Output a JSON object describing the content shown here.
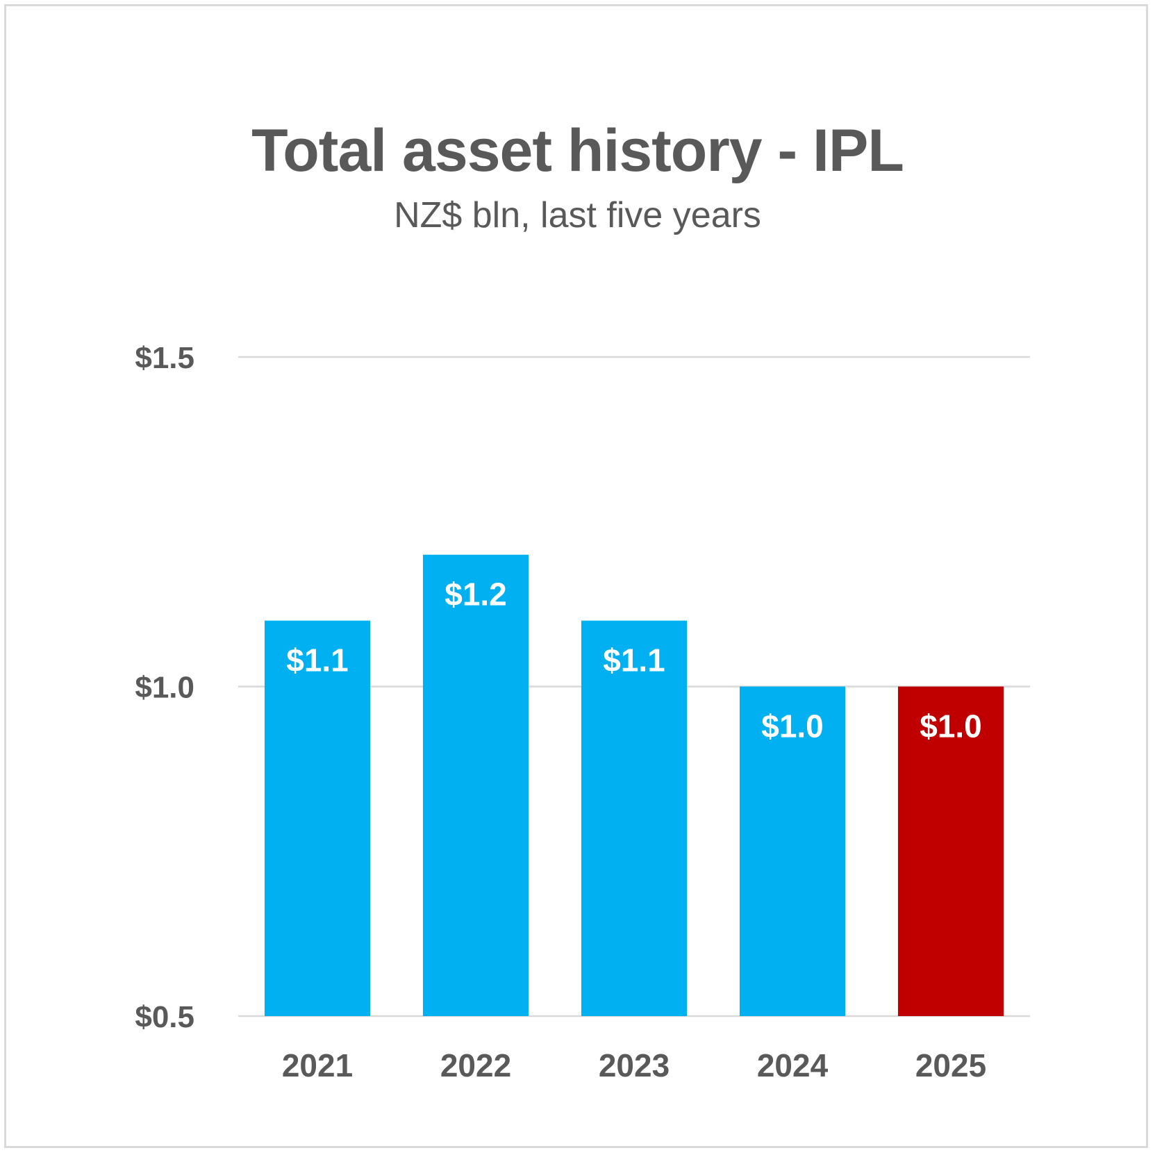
{
  "chart_data": {
    "type": "bar",
    "title": "Total asset history - IPL",
    "subtitle": "NZ$ bln, last five years",
    "categories": [
      "2021",
      "2022",
      "2023",
      "2024",
      "2025"
    ],
    "values": [
      1.1,
      1.2,
      1.1,
      1.0,
      1.0
    ],
    "data_labels": [
      "$1.1",
      "$1.2",
      "$1.1",
      "$1.0",
      "$1.0"
    ],
    "ylim": [
      0.5,
      1.5
    ],
    "yticks": [
      0.5,
      1.0,
      1.5
    ],
    "ytick_labels": [
      "$0.5",
      "$1.0",
      "$1.5"
    ],
    "grid": true,
    "legend": "none",
    "colors": [
      "#00b0f0",
      "#00b0f0",
      "#00b0f0",
      "#00b0f0",
      "#c00000"
    ],
    "gridline_color": "#d9d9d9"
  }
}
